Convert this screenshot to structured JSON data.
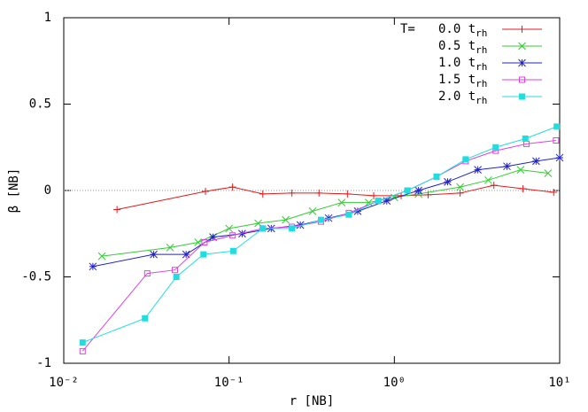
{
  "chart_data": {
    "type": "line",
    "log_x": true,
    "x_label": "r [NB]",
    "y_label": "β [NB]",
    "legend_title": "T=",
    "legend_subscript": "rh",
    "legend_position": "top-right",
    "zero_line": true,
    "xlim": [
      0.01,
      10
    ],
    "ylim": [
      -1,
      1
    ],
    "xticks": [
      {
        "value": 0.01,
        "label": "10⁻²"
      },
      {
        "value": 0.1,
        "label": "10⁻¹"
      },
      {
        "value": 1,
        "label": "10⁰"
      },
      {
        "value": 10,
        "label": "10¹"
      }
    ],
    "yticks": [
      1,
      0.5,
      0,
      -0.5,
      -1
    ],
    "series": [
      {
        "name": "0.0 t",
        "color": "#e41a1c",
        "marker": "plus",
        "x": [
          0.021,
          0.072,
          0.105,
          0.16,
          0.24,
          0.35,
          0.52,
          0.75,
          1.1,
          1.6,
          2.5,
          4.0,
          6.0,
          9.2
        ],
        "values": [
          -0.11,
          -0.005,
          0.02,
          -0.02,
          -0.015,
          -0.015,
          -0.02,
          -0.03,
          -0.03,
          -0.025,
          -0.015,
          0.03,
          0.01,
          -0.01
        ]
      },
      {
        "name": "0.5 t",
        "color": "#33cc33",
        "marker": "cross",
        "x": [
          0.017,
          0.044,
          0.065,
          0.1,
          0.15,
          0.22,
          0.32,
          0.48,
          0.7,
          1.0,
          1.4,
          2.5,
          3.7,
          5.8,
          8.5
        ],
        "values": [
          -0.38,
          -0.33,
          -0.3,
          -0.22,
          -0.19,
          -0.17,
          -0.12,
          -0.07,
          -0.07,
          -0.04,
          -0.02,
          0.02,
          0.06,
          0.12,
          0.1
        ]
      },
      {
        "name": "1.0 t",
        "color": "#2222cc",
        "marker": "star",
        "x": [
          0.015,
          0.035,
          0.055,
          0.08,
          0.12,
          0.18,
          0.27,
          0.4,
          0.6,
          0.9,
          1.4,
          2.1,
          3.2,
          4.8,
          7.2,
          10
        ],
        "values": [
          -0.44,
          -0.37,
          -0.37,
          -0.27,
          -0.25,
          -0.22,
          -0.2,
          -0.16,
          -0.12,
          -0.06,
          0.0,
          0.05,
          0.12,
          0.14,
          0.17,
          0.19
        ]
      },
      {
        "name": "1.5 t",
        "color": "#dd44dd",
        "marker": "square-open",
        "x": [
          0.013,
          0.032,
          0.047,
          0.071,
          0.105,
          0.16,
          0.24,
          0.36,
          0.53,
          0.8,
          1.2,
          1.8,
          2.7,
          4.1,
          6.3,
          9.5
        ],
        "values": [
          -0.93,
          -0.48,
          -0.46,
          -0.3,
          -0.26,
          -0.22,
          -0.21,
          -0.18,
          -0.13,
          -0.06,
          0.0,
          0.08,
          0.17,
          0.23,
          0.27,
          0.29
        ]
      },
      {
        "name": "2.0 t",
        "color": "#22dddd",
        "marker": "square-filled",
        "x": [
          0.013,
          0.031,
          0.048,
          0.07,
          0.106,
          0.16,
          0.24,
          0.36,
          0.53,
          0.8,
          1.2,
          1.8,
          2.7,
          4.1,
          6.2,
          9.6
        ],
        "values": [
          -0.88,
          -0.74,
          -0.5,
          -0.37,
          -0.35,
          -0.22,
          -0.22,
          -0.17,
          -0.14,
          -0.06,
          0.0,
          0.08,
          0.18,
          0.25,
          0.3,
          0.37
        ]
      }
    ]
  }
}
